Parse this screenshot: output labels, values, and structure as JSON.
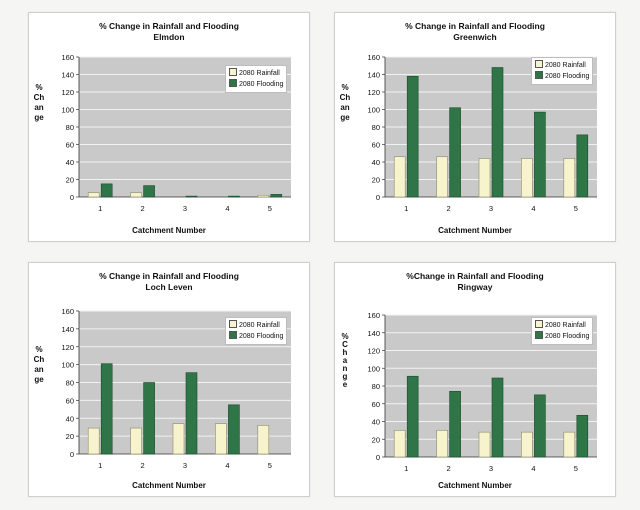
{
  "colors": {
    "rainfall": "#f7f3cc",
    "flooding": "#2f7547",
    "plot_bg": "#c9c9c9",
    "grid": "#f2f2f2"
  },
  "chart_data": [
    {
      "type": "bar",
      "title": "% Change in Rainfall and Flooding",
      "subtitle": "Elmdon",
      "ylabel": "% Ch an ge",
      "ylabel_lines": [
        "%",
        "Ch",
        "an",
        "ge"
      ],
      "xlabel": "Catchment Number",
      "categories": [
        "1",
        "2",
        "3",
        "4",
        "5"
      ],
      "ylim": [
        0,
        160
      ],
      "yticks": [
        "0",
        "20",
        "40",
        "60",
        "80",
        "100",
        "120",
        "140",
        "160"
      ],
      "legend_position": "top-right",
      "series": [
        {
          "name": "2080 Rainfall",
          "values": [
            5,
            5,
            0,
            0,
            2
          ]
        },
        {
          "name": "2080 Flooding",
          "values": [
            15,
            13,
            1,
            1,
            3
          ]
        }
      ]
    },
    {
      "type": "bar",
      "title": "% Change in Rainfall and Flooding",
      "subtitle": "Greenwich",
      "ylabel": "% Ch an ge",
      "ylabel_lines": [
        "%",
        "Ch",
        "an",
        "ge"
      ],
      "xlabel": "Catchment Number",
      "categories": [
        "1",
        "2",
        "3",
        "4",
        "5"
      ],
      "ylim": [
        0,
        160
      ],
      "yticks": [
        "0",
        "20",
        "40",
        "60",
        "80",
        "100",
        "120",
        "140",
        "160"
      ],
      "legend_position": "top-right",
      "series": [
        {
          "name": "2080 Rainfall",
          "values": [
            46,
            46,
            44,
            44,
            44
          ]
        },
        {
          "name": "2080 Flooding",
          "values": [
            138,
            102,
            148,
            97,
            71
          ]
        }
      ]
    },
    {
      "type": "bar",
      "title": "% Change in Rainfall and Flooding",
      "subtitle": "Loch Leven",
      "ylabel": "% Ch an ge",
      "ylabel_lines": [
        "%",
        "Ch",
        "an",
        "ge"
      ],
      "xlabel": "Catchment Number",
      "categories": [
        "1",
        "2",
        "3",
        "4",
        "5"
      ],
      "ylim": [
        0,
        160
      ],
      "yticks": [
        "0",
        "20",
        "40",
        "60",
        "80",
        "100",
        "120",
        "140",
        "160"
      ],
      "legend_position": "top-right",
      "series": [
        {
          "name": "2080 Rainfall",
          "values": [
            29,
            29,
            34,
            34,
            32
          ]
        },
        {
          "name": "2080 Flooding",
          "values": [
            101,
            80,
            91,
            55,
            0
          ]
        }
      ]
    },
    {
      "type": "bar",
      "title": "%Change in Rainfall and Flooding",
      "subtitle": "Ringway",
      "ylabel": "% C h a n g e",
      "ylabel_lines": [
        "%",
        "C",
        "h",
        "a",
        "n",
        "g",
        "e"
      ],
      "xlabel": "Catchment Number",
      "categories": [
        "1",
        "2",
        "3",
        "4",
        "5"
      ],
      "ylim": [
        0,
        160
      ],
      "yticks": [
        "0",
        "20",
        "40",
        "60",
        "80",
        "100",
        "120",
        "140",
        "160"
      ],
      "legend_position": "top-right",
      "series": [
        {
          "name": "2080 Rainfall",
          "values": [
            30,
            30,
            28,
            28,
            28
          ]
        },
        {
          "name": "2080 Flooding",
          "values": [
            91,
            74,
            89,
            70,
            47
          ]
        }
      ]
    }
  ]
}
